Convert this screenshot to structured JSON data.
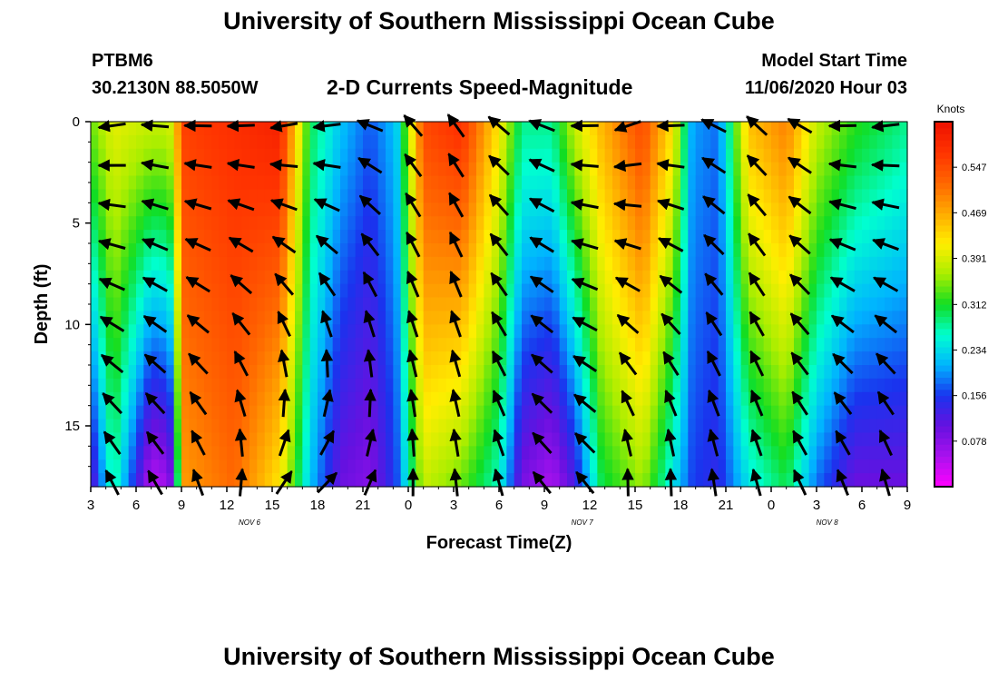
{
  "header": {
    "title": "University of Southern Mississippi Ocean Cube",
    "station": "PTBM6",
    "coordinates": "30.2130N 88.5050W",
    "subtitle": "2-D Currents Speed-Magnitude",
    "model_start_label": "Model Start Time",
    "model_start_value": "11/06/2020 Hour 03"
  },
  "footer": {
    "title": "University of Southern Mississippi Ocean Cube"
  },
  "chart_data": {
    "type": "heatmap",
    "title": "2-D Currents Speed-Magnitude",
    "xlabel": "Forecast Time(Z)",
    "ylabel": "Depth (ft)",
    "x_hours": [
      0,
      3,
      6,
      9,
      12,
      15,
      18,
      21,
      24,
      27,
      30,
      33,
      36,
      39,
      42,
      45,
      48,
      51,
      54
    ],
    "x_tick_labels": [
      "3",
      "6",
      "9",
      "12",
      "15",
      "18",
      "21",
      "0",
      "3",
      "6",
      "9",
      "12",
      "15",
      "18",
      "21",
      "0",
      "3",
      "6",
      "9"
    ],
    "x_day_labels": [
      {
        "label": "NOV  6",
        "hour": 10.5
      },
      {
        "label": "NOV  7",
        "hour": 32.5
      },
      {
        "label": "NOV  8",
        "hour": 48.7
      }
    ],
    "y_ticks": [
      0,
      5,
      10,
      15
    ],
    "ylim": [
      0,
      18
    ],
    "xlim": [
      0,
      54
    ],
    "colorbar": {
      "label": "Knots",
      "ticks": [
        0.078,
        0.156,
        0.234,
        0.312,
        0.391,
        0.469,
        0.547
      ],
      "range": [
        0,
        0.625
      ],
      "colors": [
        "#ff00ff",
        "#aa11ee",
        "#6611e0",
        "#1a33ee",
        "#00b4ff",
        "#00ffd0",
        "#11dd22",
        "#aaee00",
        "#ffee00",
        "#ffaa00",
        "#ff6600",
        "#ff3300",
        "#ee1100"
      ]
    },
    "speed_profile": [
      [
        0,
        0.34,
        0.1
      ],
      [
        1.5,
        0.4,
        0.28
      ],
      [
        4,
        0.38,
        0.04
      ],
      [
        5.2,
        0.38,
        0.06
      ],
      [
        6.2,
        0.56,
        0.48
      ],
      [
        9.5,
        0.58,
        0.52
      ],
      [
        12.5,
        0.6,
        0.42
      ],
      [
        14.5,
        0.3,
        0.22
      ],
      [
        16.5,
        0.22,
        0.1
      ],
      [
        18.5,
        0.17,
        0.08
      ],
      [
        20.2,
        0.22,
        0.16
      ],
      [
        22,
        0.55,
        0.38
      ],
      [
        24.5,
        0.58,
        0.34
      ],
      [
        27,
        0.42,
        0.26
      ],
      [
        28.5,
        0.28,
        0.09
      ],
      [
        30.5,
        0.28,
        0.05
      ],
      [
        32,
        0.38,
        0.12
      ],
      [
        33.8,
        0.46,
        0.3
      ],
      [
        36.5,
        0.55,
        0.36
      ],
      [
        38.5,
        0.42,
        0.24
      ],
      [
        39.8,
        0.2,
        0.16
      ],
      [
        41.5,
        0.18,
        0.14
      ],
      [
        43.5,
        0.45,
        0.24
      ],
      [
        46,
        0.5,
        0.3
      ],
      [
        48,
        0.38,
        0.18
      ],
      [
        50.5,
        0.32,
        0.1
      ],
      [
        54,
        0.28,
        0.1
      ]
    ],
    "direction_profile": [
      [
        0,
        195,
        115
      ],
      [
        4.5,
        175,
        120
      ],
      [
        7,
        180,
        110
      ],
      [
        9,
        180,
        95
      ],
      [
        12,
        190,
        60
      ],
      [
        15,
        195,
        40
      ],
      [
        18,
        165,
        60
      ],
      [
        20,
        140,
        85
      ],
      [
        21.5,
        130,
        90
      ],
      [
        24,
        125,
        95
      ],
      [
        27,
        140,
        105
      ],
      [
        30,
        160,
        130
      ],
      [
        32,
        170,
        140
      ],
      [
        33.5,
        195,
        115
      ],
      [
        35.5,
        200,
        90
      ],
      [
        38,
        185,
        90
      ],
      [
        40,
        175,
        95
      ],
      [
        42,
        140,
        100
      ],
      [
        46,
        135,
        110
      ],
      [
        48,
        170,
        120
      ],
      [
        51,
        190,
        105
      ],
      [
        54,
        185,
        105
      ]
    ],
    "arrow_columns": 19,
    "arrow_rows": 10
  }
}
